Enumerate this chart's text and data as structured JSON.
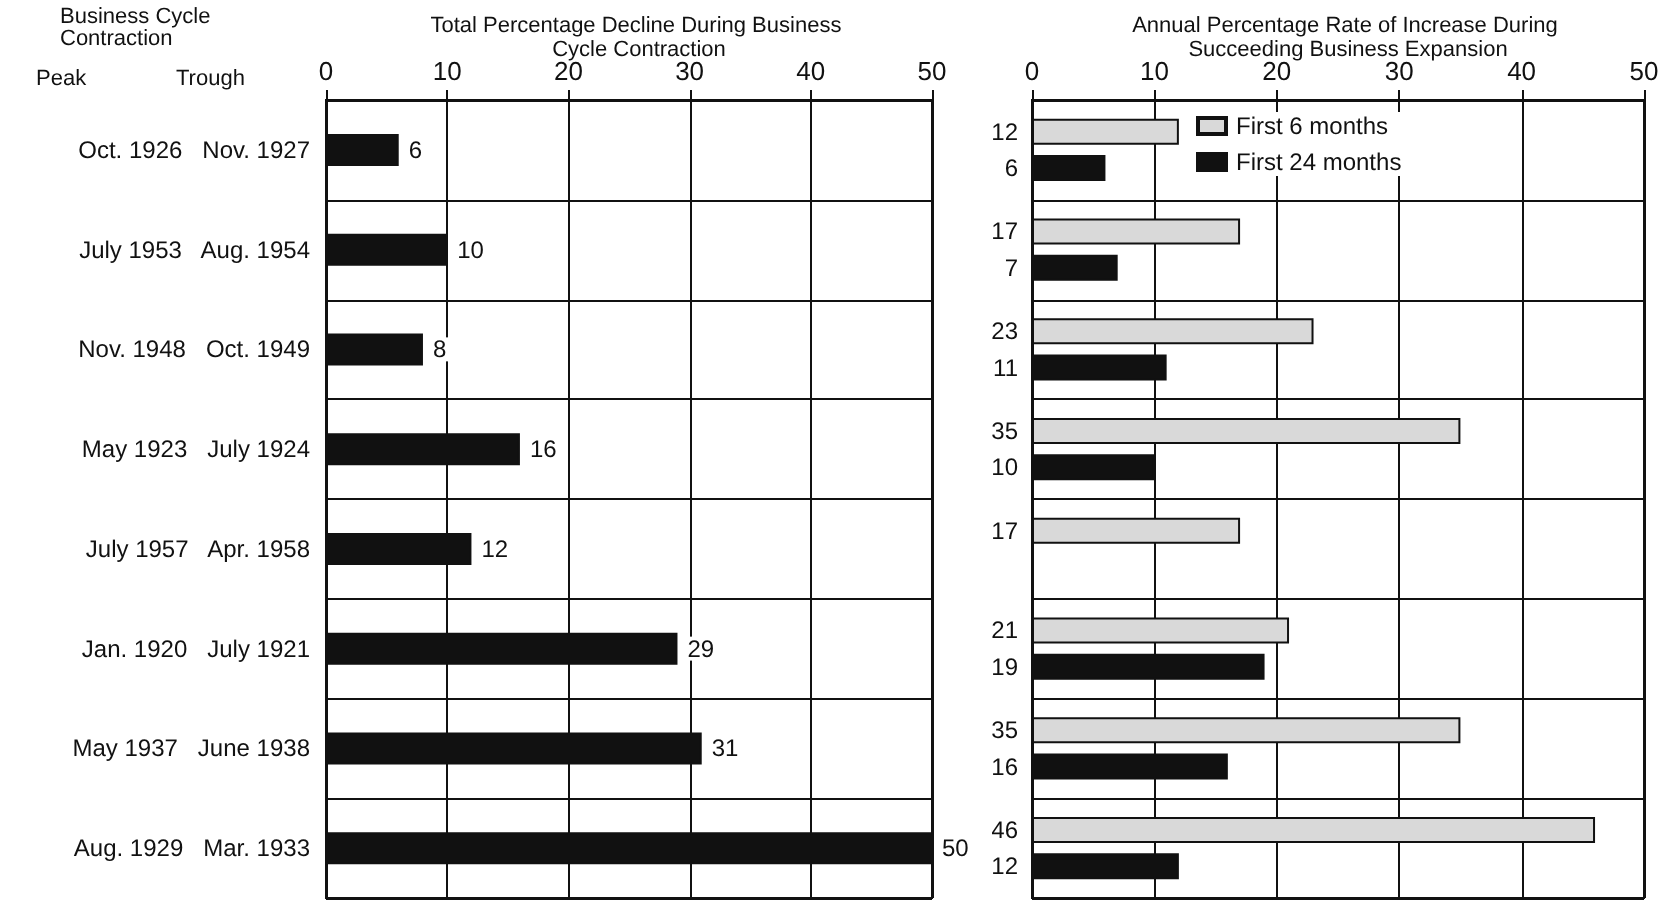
{
  "chart_data": [
    {
      "type": "bar",
      "orientation": "horizontal",
      "title": "Total Percentage Decline During Business Cycle Contraction",
      "ylabel": "Business Cycle Contraction",
      "annotations": [
        "Peak",
        "Trough"
      ],
      "categories": [
        "Oct. 1926   Nov. 1927",
        "July 1953   Aug. 1954",
        "Nov. 1948   Oct. 1949",
        "May 1923   July 1924",
        "July 1957   Apr. 1958",
        "Jan. 1920   July 1921",
        "May 1937   June 1938",
        "Aug. 1929   Mar. 1933"
      ],
      "values": [
        6,
        10,
        8,
        16,
        12,
        29,
        31,
        50
      ],
      "color": "#111111",
      "data_labels": true,
      "xlim": [
        0,
        50
      ],
      "xticks": [
        0,
        10,
        20,
        30,
        40,
        50
      ],
      "grid": true
    },
    {
      "type": "bar",
      "orientation": "horizontal",
      "title": "Annual Percentage Rate of Increase During Succeeding Business Expansion",
      "categories": [
        null,
        null,
        null,
        null,
        null,
        null,
        null,
        null
      ],
      "series": [
        {
          "name": "First 6 months",
          "color": "#d9d9d9",
          "values": [
            12,
            17,
            23,
            35,
            17,
            21,
            35,
            46
          ]
        },
        {
          "name": "First 24 months",
          "color": "#111111",
          "values": [
            6,
            7,
            11,
            10,
            null,
            19,
            16,
            12
          ]
        }
      ],
      "data_labels": true,
      "xlim": [
        0,
        50
      ],
      "xticks": [
        0,
        10,
        20,
        30,
        40,
        50
      ],
      "grid": true,
      "legend": "top left",
      "tick_labels": "x"
    }
  ]
}
